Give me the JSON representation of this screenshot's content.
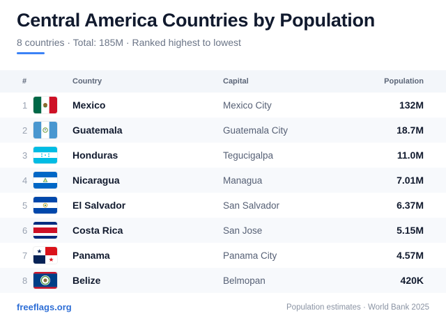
{
  "header": {
    "title": "Central America Countries by Population",
    "subtitle": "8 countries · Total: 185M · Ranked highest to lowest"
  },
  "table": {
    "columns": {
      "num": "#",
      "country": "Country",
      "capital": "Capital",
      "population": "Population"
    },
    "rows": [
      {
        "rank": "1",
        "country": "Mexico",
        "capital": "Mexico City",
        "population": "132M",
        "flag": "mexico-flag-icon"
      },
      {
        "rank": "2",
        "country": "Guatemala",
        "capital": "Guatemala City",
        "population": "18.7M",
        "flag": "guatemala-flag-icon"
      },
      {
        "rank": "3",
        "country": "Honduras",
        "capital": "Tegucigalpa",
        "population": "11.0M",
        "flag": "honduras-flag-icon"
      },
      {
        "rank": "4",
        "country": "Nicaragua",
        "capital": "Managua",
        "population": "7.01M",
        "flag": "nicaragua-flag-icon"
      },
      {
        "rank": "5",
        "country": "El Salvador",
        "capital": "San Salvador",
        "population": "6.37M",
        "flag": "el-salvador-flag-icon"
      },
      {
        "rank": "6",
        "country": "Costa Rica",
        "capital": "San Jose",
        "population": "5.15M",
        "flag": "costa-rica-flag-icon"
      },
      {
        "rank": "7",
        "country": "Panama",
        "capital": "Panama City",
        "population": "4.57M",
        "flag": "panama-flag-icon"
      },
      {
        "rank": "8",
        "country": "Belize",
        "capital": "Belmopan",
        "population": "420K",
        "flag": "belize-flag-icon"
      }
    ]
  },
  "footer": {
    "brand": "freeflags.org",
    "source": "Population estimates · World Bank 2025"
  },
  "colors": {
    "accent": "#3b82f6",
    "brand": "#2f6fd6",
    "header_row_bg": "#f3f6fa",
    "alt_row_bg": "#f7f9fc"
  }
}
